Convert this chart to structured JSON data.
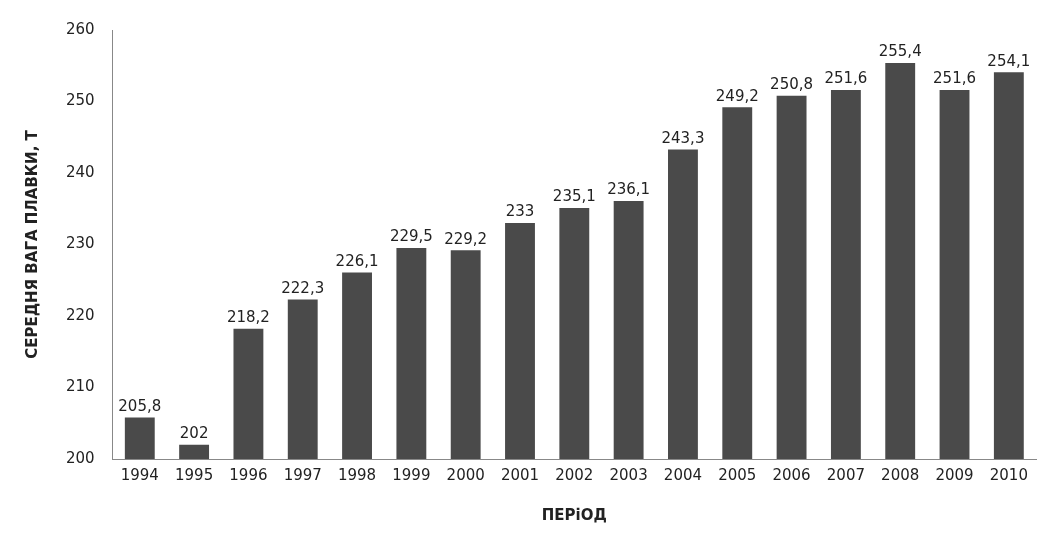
{
  "chart_data": {
    "type": "bar",
    "xlabel": "ПЕРіОД",
    "ylabel": "СЕРЕДНЯ ВАГА ПЛАВКИ, Т",
    "categories": [
      "1994",
      "1995",
      "1996",
      "1997",
      "1998",
      "1999",
      "2000",
      "2001",
      "2002",
      "2003",
      "2004",
      "2005",
      "2006",
      "2007",
      "2008",
      "2009",
      "2010"
    ],
    "values": [
      205.8,
      202,
      218.2,
      222.3,
      226.1,
      229.5,
      229.2,
      233,
      235.1,
      236.1,
      243.3,
      249.2,
      250.8,
      251.6,
      255.4,
      251.6,
      254.1
    ],
    "value_labels": [
      "205,8",
      "202",
      "218,2",
      "222,3",
      "226,1",
      "229,5",
      "229,2",
      "233",
      "235,1",
      "236,1",
      "243,3",
      "249,2",
      "250,8",
      "251,6",
      "255,4",
      "251,6",
      "254,1"
    ],
    "color": "#4a4a4a",
    "ylim": [
      200,
      260
    ],
    "yticks": [
      200,
      210,
      220,
      230,
      240,
      250,
      260
    ],
    "grid": false,
    "legend": false
  }
}
